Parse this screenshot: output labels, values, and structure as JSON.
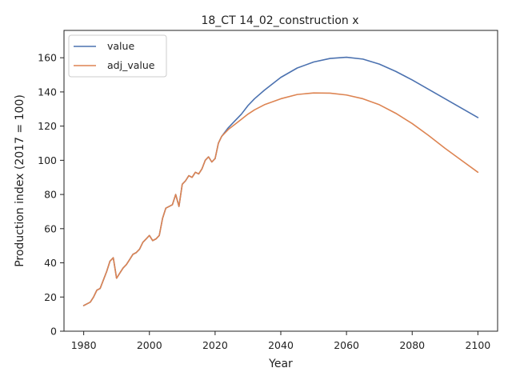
{
  "chart_data": {
    "type": "line",
    "title": "18_CT 14_02_construction x",
    "xlabel": "Year",
    "ylabel": "Production index (2017 = 100)",
    "xlim": [
      1974,
      2106
    ],
    "ylim": [
      0,
      176
    ],
    "xticks": [
      1980,
      2000,
      2020,
      2040,
      2060,
      2080,
      2100
    ],
    "yticks": [
      0,
      20,
      40,
      60,
      80,
      100,
      120,
      140,
      160
    ],
    "legend": "top-left",
    "grid": false,
    "series": [
      {
        "name": "value",
        "color": "#4c72b0",
        "points": [
          [
            1980,
            15
          ],
          [
            1981,
            16
          ],
          [
            1982,
            17
          ],
          [
            1983,
            20
          ],
          [
            1984,
            24
          ],
          [
            1985,
            25
          ],
          [
            1986,
            30
          ],
          [
            1987,
            35
          ],
          [
            1988,
            41
          ],
          [
            1989,
            43
          ],
          [
            1990,
            31
          ],
          [
            1991,
            34
          ],
          [
            1992,
            37
          ],
          [
            1993,
            39
          ],
          [
            1994,
            42
          ],
          [
            1995,
            45
          ],
          [
            1996,
            46
          ],
          [
            1997,
            48
          ],
          [
            1998,
            52
          ],
          [
            1999,
            54
          ],
          [
            2000,
            56
          ],
          [
            2001,
            53
          ],
          [
            2002,
            54
          ],
          [
            2003,
            56
          ],
          [
            2004,
            66
          ],
          [
            2005,
            72
          ],
          [
            2006,
            73
          ],
          [
            2007,
            74
          ],
          [
            2008,
            80
          ],
          [
            2009,
            73
          ],
          [
            2010,
            86
          ],
          [
            2011,
            88
          ],
          [
            2012,
            91
          ],
          [
            2013,
            90
          ],
          [
            2014,
            93
          ],
          [
            2015,
            92
          ],
          [
            2016,
            95
          ],
          [
            2017,
            100
          ],
          [
            2018,
            102
          ],
          [
            2019,
            99
          ],
          [
            2020,
            101
          ],
          [
            2021,
            110
          ],
          [
            2022,
            114
          ],
          [
            2024,
            119
          ],
          [
            2026,
            123
          ],
          [
            2028,
            127
          ],
          [
            2030,
            132
          ],
          [
            2032,
            136
          ],
          [
            2035,
            141
          ],
          [
            2040,
            148.5
          ],
          [
            2045,
            154
          ],
          [
            2050,
            157.5
          ],
          [
            2055,
            159.6
          ],
          [
            2060,
            160.3
          ],
          [
            2065,
            159.2
          ],
          [
            2070,
            156.3
          ],
          [
            2075,
            152
          ],
          [
            2080,
            147
          ],
          [
            2085,
            141.5
          ],
          [
            2090,
            136
          ],
          [
            2095,
            130.5
          ],
          [
            2100,
            125
          ]
        ]
      },
      {
        "name": "adj_value",
        "color": "#dd8452",
        "points": [
          [
            1980,
            15
          ],
          [
            1981,
            16
          ],
          [
            1982,
            17
          ],
          [
            1983,
            20
          ],
          [
            1984,
            24
          ],
          [
            1985,
            25
          ],
          [
            1986,
            30
          ],
          [
            1987,
            35
          ],
          [
            1988,
            41
          ],
          [
            1989,
            43
          ],
          [
            1990,
            31
          ],
          [
            1991,
            34
          ],
          [
            1992,
            37
          ],
          [
            1993,
            39
          ],
          [
            1994,
            42
          ],
          [
            1995,
            45
          ],
          [
            1996,
            46
          ],
          [
            1997,
            48
          ],
          [
            1998,
            52
          ],
          [
            1999,
            54
          ],
          [
            2000,
            56
          ],
          [
            2001,
            53
          ],
          [
            2002,
            54
          ],
          [
            2003,
            56
          ],
          [
            2004,
            66
          ],
          [
            2005,
            72
          ],
          [
            2006,
            73
          ],
          [
            2007,
            74
          ],
          [
            2008,
            80
          ],
          [
            2009,
            73
          ],
          [
            2010,
            86
          ],
          [
            2011,
            88
          ],
          [
            2012,
            91
          ],
          [
            2013,
            90
          ],
          [
            2014,
            93
          ],
          [
            2015,
            92
          ],
          [
            2016,
            95
          ],
          [
            2017,
            100
          ],
          [
            2018,
            102
          ],
          [
            2019,
            99
          ],
          [
            2020,
            101
          ],
          [
            2021,
            110
          ],
          [
            2022,
            114
          ],
          [
            2024,
            118
          ],
          [
            2026,
            121
          ],
          [
            2028,
            124
          ],
          [
            2030,
            127
          ],
          [
            2032,
            129.5
          ],
          [
            2035,
            132.5
          ],
          [
            2040,
            136
          ],
          [
            2045,
            138.5
          ],
          [
            2050,
            139.4
          ],
          [
            2055,
            139.3
          ],
          [
            2060,
            138.2
          ],
          [
            2065,
            136
          ],
          [
            2070,
            132.5
          ],
          [
            2075,
            127.5
          ],
          [
            2080,
            121.5
          ],
          [
            2085,
            114.5
          ],
          [
            2090,
            107
          ],
          [
            2095,
            100
          ],
          [
            2100,
            93
          ]
        ]
      }
    ]
  }
}
